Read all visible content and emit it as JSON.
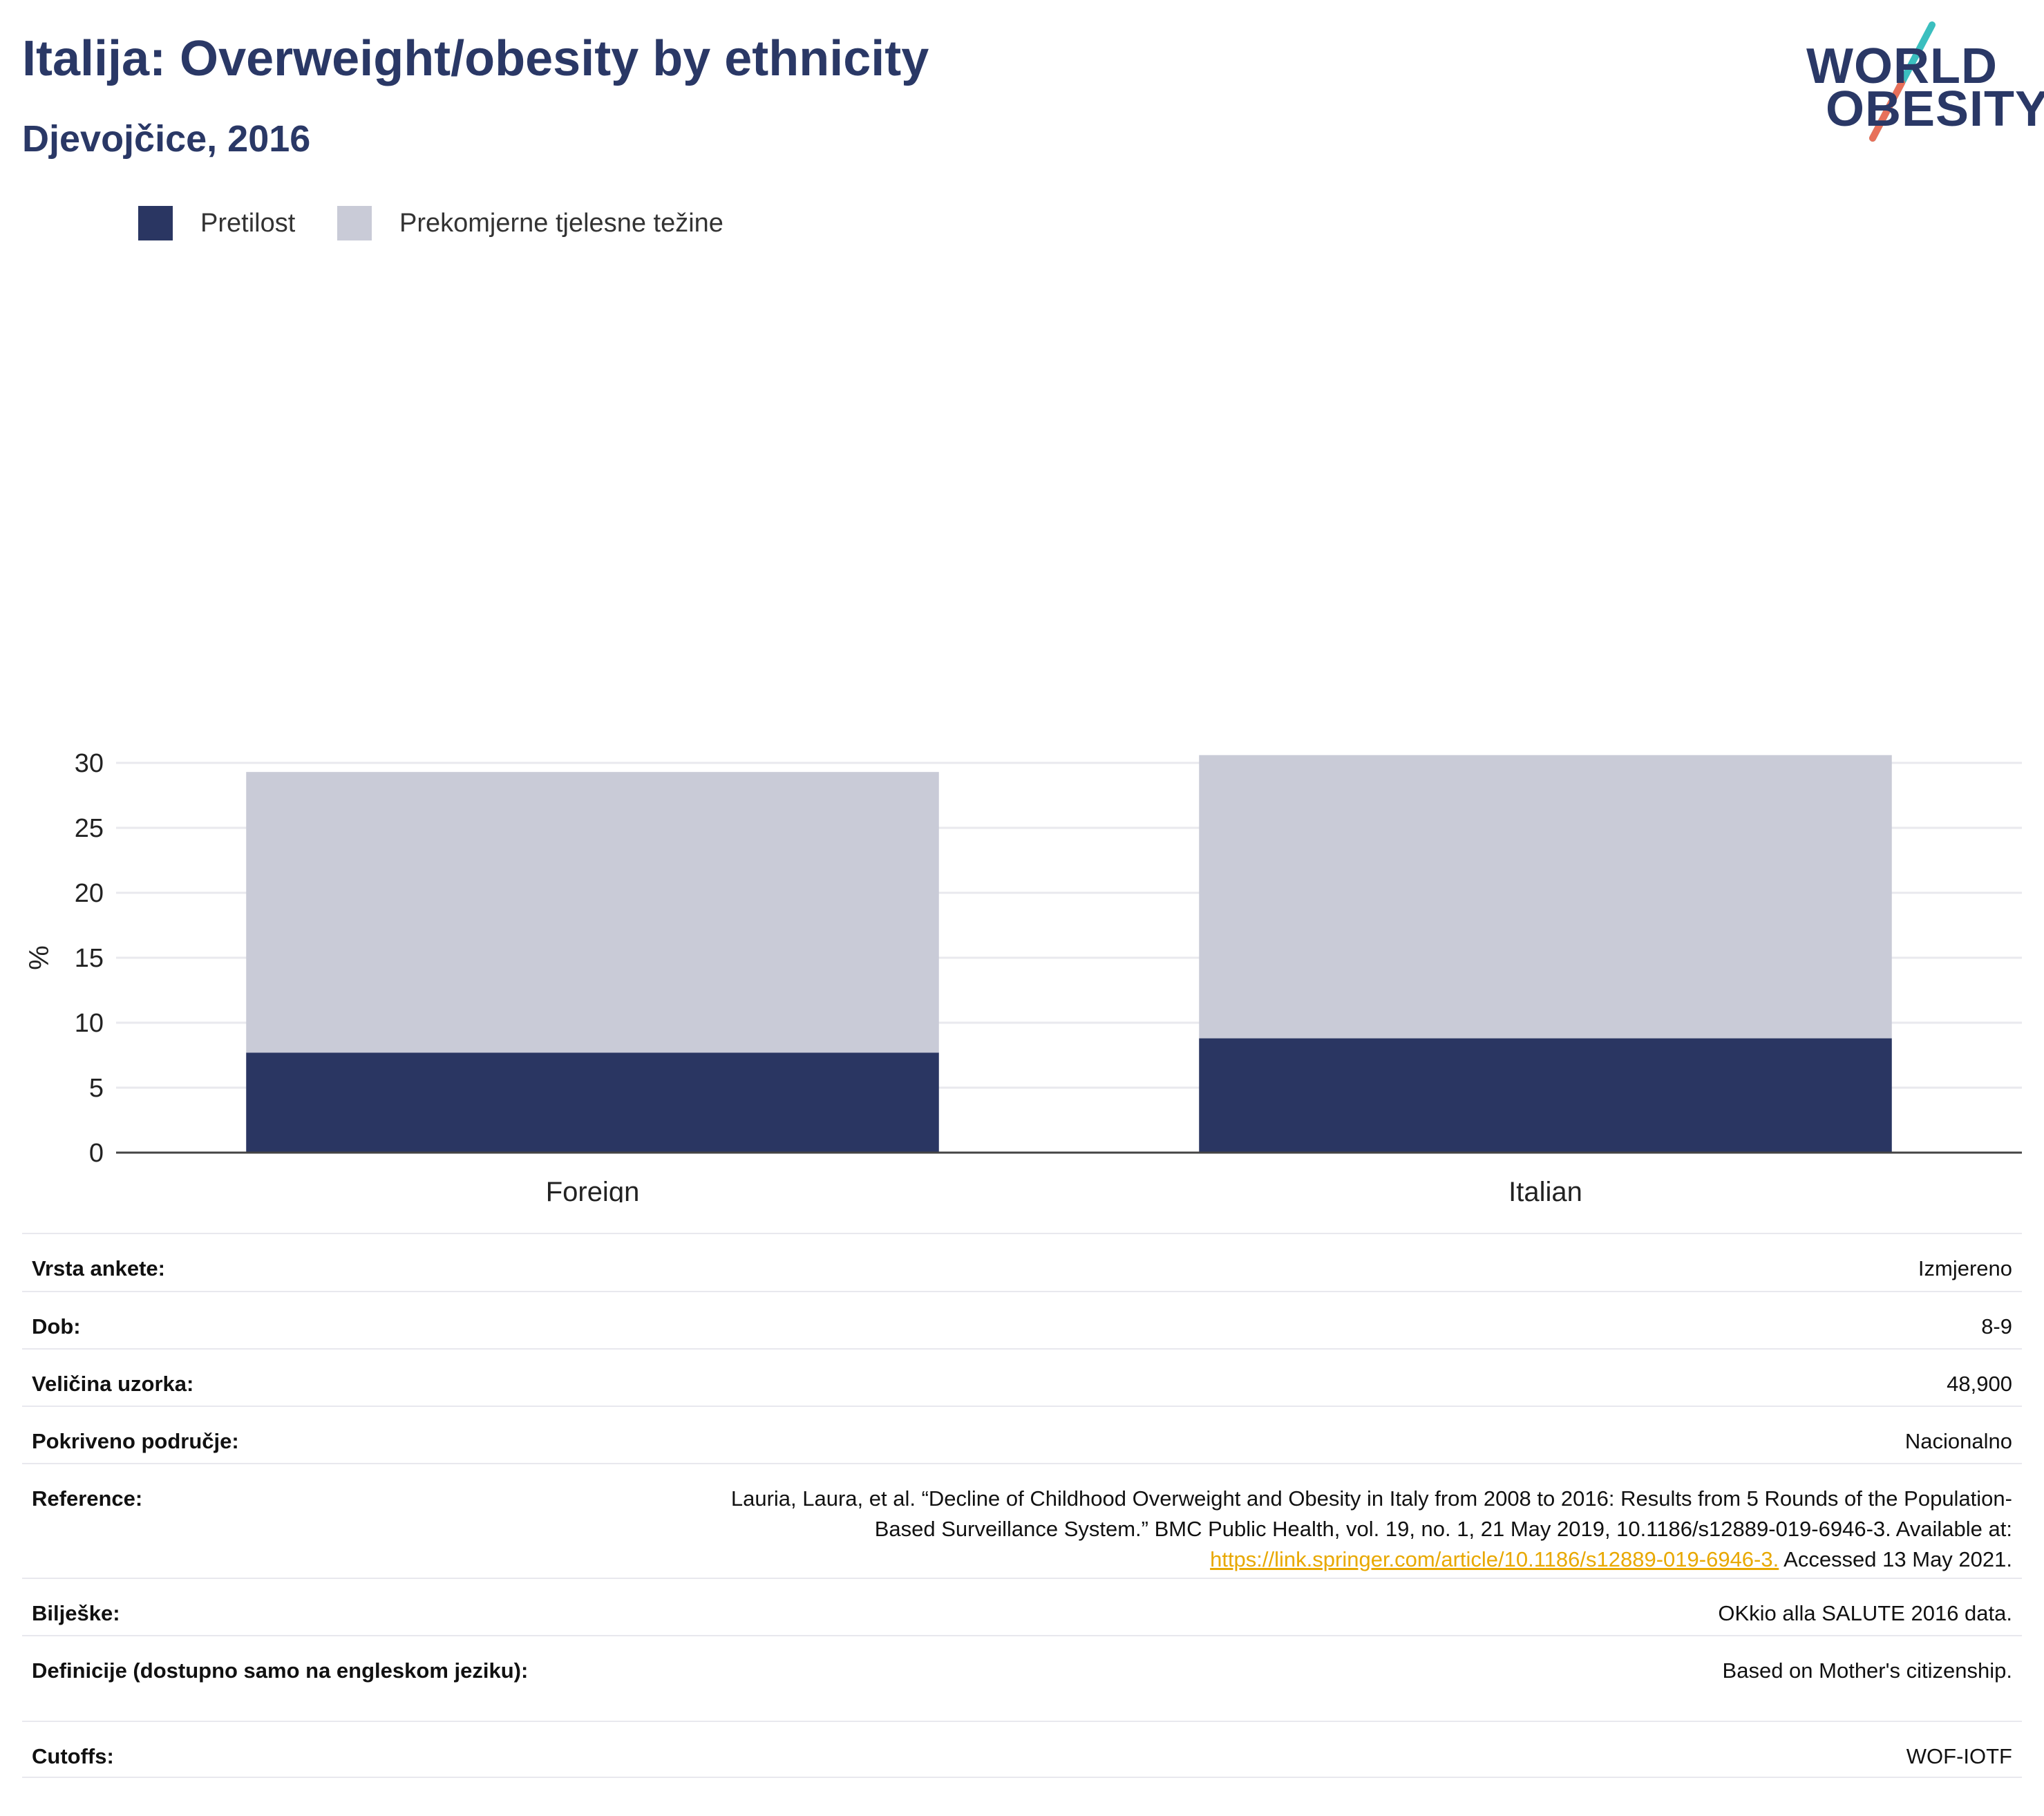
{
  "header": {
    "title": "Italija: Overweight/obesity by ethnicity",
    "subtitle": "Djevojčice, 2016"
  },
  "logo": {
    "line1": "WORLD",
    "line2": "OBESITY",
    "colors": {
      "text": "#2a3866",
      "slash_top": "#3bbfbf",
      "slash_bottom": "#e8705a"
    }
  },
  "legend": {
    "items": [
      {
        "label": "Pretilost",
        "color": "#2a3662"
      },
      {
        "label": "Prekomjerne tjelesne težine",
        "color": "#c9cbd7"
      }
    ]
  },
  "chart_data": {
    "type": "bar",
    "stacked": true,
    "categories": [
      "Foreign",
      "Italian"
    ],
    "series": [
      {
        "name": "Pretilost",
        "values": [
          7.7,
          8.8
        ],
        "color": "#2a3662"
      },
      {
        "name": "Prekomjerne tjelesne težine",
        "values": [
          21.6,
          21.8
        ],
        "color": "#c9cbd7"
      }
    ],
    "ylabel": "%",
    "ylim": [
      0,
      30
    ],
    "yticks": [
      "0",
      "5",
      "10",
      "15",
      "20",
      "25",
      "30"
    ],
    "grid": true,
    "legend_position": "top-left"
  },
  "meta": {
    "rows": [
      {
        "key": "Vrsta ankete:",
        "value": "Izmjereno"
      },
      {
        "key": "Dob:",
        "value": "8-9"
      },
      {
        "key": "Veličina uzorka:",
        "value": "48,900"
      },
      {
        "key": "Pokriveno područje:",
        "value": "Nacionalno"
      },
      {
        "key": "Reference:",
        "value_line1": "Lauria, Laura, et al. “Decline of Childhood Overweight and Obesity in Italy from 2008 to 2016: Results from 5 Rounds of the Population-",
        "value_line2": "Based Surveillance System.” BMC Public Health, vol. 19, no. 1, 21 May 2019, 10.1186/s12889-019-6946-3. Available at:",
        "link": "https://link.springer.com/article/10.1186/s12889-019-6946-3.",
        "value_after_link": " Accessed 13 May 2021."
      },
      {
        "key": "Bilješke:",
        "value": "OKkio alla SALUTE 2016 data."
      },
      {
        "key": "Definicije (dostupno samo na engleskom jeziku):",
        "value": "Based on Mother's citizenship."
      },
      {
        "key": "Cutoffs:",
        "value": "WOF-IOTF"
      }
    ]
  }
}
